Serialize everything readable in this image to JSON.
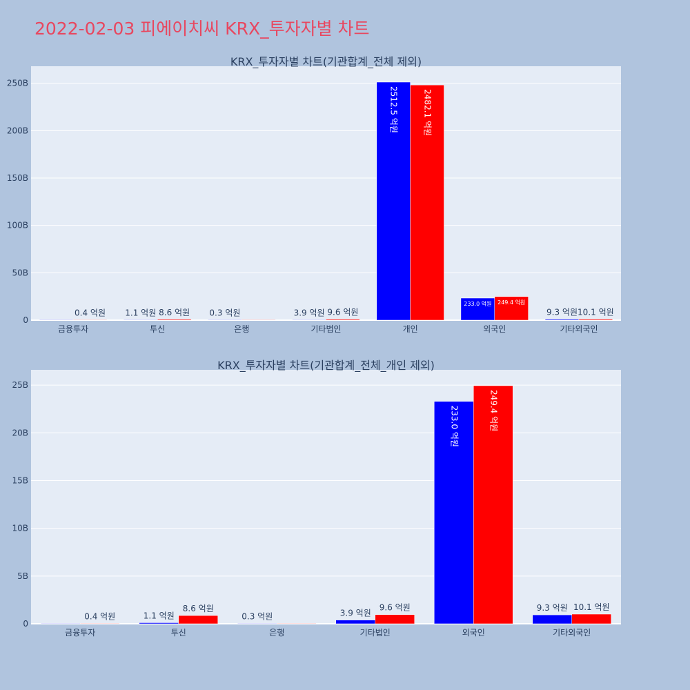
{
  "page": {
    "title": "2022-02-03 피에이치씨 KRX_투자자별 차트"
  },
  "colors": {
    "page_bg": "#b0c4de",
    "plot_bg": "#e5ecf6",
    "title": "#e8475f",
    "text": "#2a3f5f",
    "buy": "#0000ff",
    "sell": "#ff0000"
  },
  "chart_data": [
    {
      "type": "bar",
      "title": "KRX_투자자별 차트(기관합계_전체 제외)",
      "categories": [
        "금융투자",
        "투신",
        "은행",
        "기타법인",
        "개인",
        "외국인",
        "기타외국인"
      ],
      "series": [
        {
          "color": "#0000ff",
          "values": [
            0.0,
            0.11,
            0.03,
            0.39,
            251.25,
            23.3,
            0.93
          ],
          "labels": [
            "",
            "1.1 억원",
            "0.3 억원",
            "3.9 억원",
            "2512.5 억원",
            "233.0 억원",
            "9.3 억원"
          ]
        },
        {
          "color": "#ff0000",
          "values": [
            0.04,
            0.86,
            0.0,
            0.96,
            248.21,
            24.94,
            1.01
          ],
          "labels": [
            "0.4 억원",
            "8.6 억원",
            "",
            "9.6 억원",
            "2482.1 억원",
            "249.4 억원",
            "10.1 억원"
          ]
        }
      ],
      "ylim": [
        0,
        268
      ],
      "yticks": [
        0,
        50,
        100,
        150,
        200,
        250
      ],
      "ytick_labels": [
        "0",
        "50B",
        "100B",
        "150B",
        "200B",
        "250B"
      ],
      "grid": true
    },
    {
      "type": "bar",
      "title": "KRX_투자자별 차트(기관합계_전체_개인 제외)",
      "categories": [
        "금융투자",
        "투신",
        "은행",
        "기타법인",
        "외국인",
        "기타외국인"
      ],
      "series": [
        {
          "color": "#0000ff",
          "values": [
            0.0,
            0.11,
            0.03,
            0.39,
            23.3,
            0.93
          ],
          "labels": [
            "",
            "1.1 억원",
            "0.3 억원",
            "3.9 억원",
            "233.0 억원",
            "9.3 억원"
          ]
        },
        {
          "color": "#ff0000",
          "values": [
            0.04,
            0.86,
            0.0,
            0.96,
            24.94,
            1.01
          ],
          "labels": [
            "0.4 억원",
            "8.6 억원",
            "",
            "9.6 억원",
            "249.4 억원",
            "10.1 억원"
          ]
        }
      ],
      "ylim": [
        0,
        26.6
      ],
      "yticks": [
        0,
        5,
        10,
        15,
        20,
        25
      ],
      "ytick_labels": [
        "0",
        "5B",
        "10B",
        "15B",
        "20B",
        "25B"
      ],
      "grid": true
    }
  ]
}
